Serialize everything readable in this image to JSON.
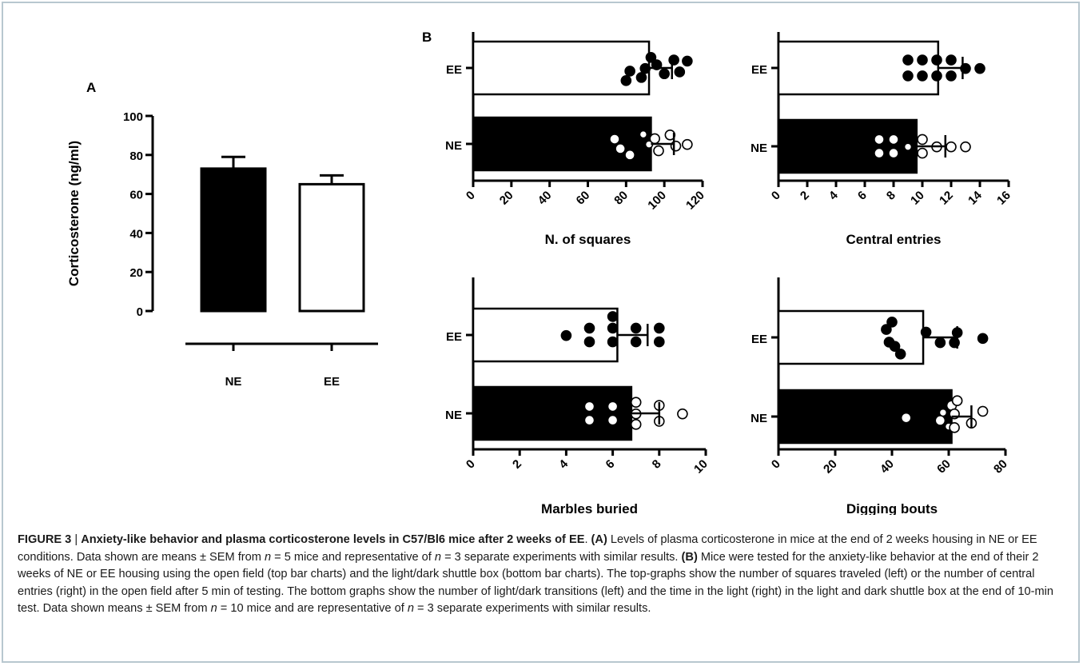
{
  "chart_data": [
    {
      "panel": "A",
      "type": "bar",
      "orientation": "vertical",
      "categories": [
        "NE",
        "EE"
      ],
      "values": [
        73,
        65
      ],
      "sem": [
        6,
        4.5
      ],
      "fills": [
        "#000000",
        "#ffffff"
      ],
      "ylabel": "Corticosterone (ng/ml)",
      "xlabel": "",
      "ylim": [
        0,
        100
      ],
      "yticks": [
        "0",
        "20",
        "40",
        "60",
        "80",
        "100"
      ]
    },
    {
      "panel": "B",
      "type": "bar",
      "orientation": "horizontal",
      "categories": [
        "EE",
        "NE"
      ],
      "values": [
        92,
        93
      ],
      "sem": [
        12,
        12
      ],
      "fills": [
        "#ffffff",
        "#000000"
      ],
      "xlabel": "N. of squares",
      "xlim": [
        0,
        120
      ],
      "xticks": [
        "0",
        "20",
        "40",
        "60",
        "80",
        "100",
        "120"
      ],
      "points": {
        "EE": [
          [
            80,
            0.48
          ],
          [
            82,
            0.12
          ],
          [
            88,
            0.36
          ],
          [
            90,
            0.02
          ],
          [
            93,
            -0.4
          ],
          [
            96,
            -0.12
          ],
          [
            100,
            0.22
          ],
          [
            105,
            -0.3
          ],
          [
            108,
            0.15
          ],
          [
            112,
            -0.26
          ]
        ],
        "NE": [
          [
            74,
            -0.18
          ],
          [
            77,
            0.18
          ],
          [
            82,
            0.42
          ],
          [
            89,
            -0.36
          ],
          [
            92,
            0.02
          ],
          [
            95,
            -0.2
          ],
          [
            97,
            0.26
          ],
          [
            103,
            -0.34
          ],
          [
            106,
            0.08
          ],
          [
            112,
            0.02
          ]
        ]
      }
    },
    {
      "panel": "B",
      "type": "bar",
      "orientation": "horizontal",
      "categories": [
        "EE",
        "NE"
      ],
      "values": [
        11.1,
        9.6
      ],
      "sem": [
        1.7,
        2.0
      ],
      "fills": [
        "#ffffff",
        "#000000"
      ],
      "xlabel": "Central entries",
      "xlim": [
        0,
        16
      ],
      "xticks": [
        "0",
        "2",
        "4",
        "6",
        "8",
        "10",
        "12",
        "14",
        "16"
      ],
      "points": {
        "EE": [
          [
            9,
            -0.3
          ],
          [
            9,
            0.3
          ],
          [
            10,
            -0.3
          ],
          [
            10,
            0.3
          ],
          [
            11,
            -0.3
          ],
          [
            11,
            0.3
          ],
          [
            12,
            -0.3
          ],
          [
            12,
            0.3
          ],
          [
            13,
            0.02
          ],
          [
            14,
            0.02
          ]
        ],
        "NE": [
          [
            7,
            -0.26
          ],
          [
            7,
            0.26
          ],
          [
            8,
            -0.26
          ],
          [
            8,
            0.26
          ],
          [
            9,
            0.02
          ],
          [
            10,
            -0.26
          ],
          [
            10,
            0.26
          ],
          [
            11,
            0.02
          ],
          [
            12,
            0.02
          ],
          [
            13,
            0.02
          ]
        ]
      }
    },
    {
      "panel": "B",
      "type": "bar",
      "orientation": "horizontal",
      "categories": [
        "EE",
        "NE"
      ],
      "values": [
        6.2,
        6.8
      ],
      "sem": [
        1.3,
        1.2
      ],
      "fills": [
        "#ffffff",
        "#000000"
      ],
      "xlabel": "Marbles buried",
      "xlim": [
        0,
        10
      ],
      "xticks": [
        "0",
        "2",
        "4",
        "6",
        "8",
        "10"
      ],
      "points": {
        "EE": [
          [
            4,
            0.02
          ],
          [
            5,
            -0.26
          ],
          [
            5,
            0.26
          ],
          [
            6,
            -0.26
          ],
          [
            6,
            0.26
          ],
          [
            6,
            -0.7
          ],
          [
            7,
            -0.26
          ],
          [
            7,
            0.26
          ],
          [
            8,
            -0.26
          ],
          [
            8,
            0.26
          ]
        ],
        "NE": [
          [
            5,
            -0.26
          ],
          [
            5,
            0.26
          ],
          [
            6,
            -0.26
          ],
          [
            6,
            0.26
          ],
          [
            7,
            -0.42
          ],
          [
            7,
            0.02
          ],
          [
            7,
            0.42
          ],
          [
            8,
            -0.3
          ],
          [
            8,
            0.3
          ],
          [
            9,
            0.02
          ]
        ]
      }
    },
    {
      "panel": "B",
      "type": "bar",
      "orientation": "horizontal",
      "categories": [
        "EE",
        "NE"
      ],
      "values": [
        51,
        61
      ],
      "sem": [
        12,
        7
      ],
      "fills": [
        "#ffffff",
        "#000000"
      ],
      "xlabel": "Digging bouts",
      "xlim": [
        0,
        80
      ],
      "xticks": [
        "0",
        "20",
        "40",
        "60",
        "80"
      ],
      "points": {
        "EE": [
          [
            38,
            -0.3
          ],
          [
            39,
            0.18
          ],
          [
            40,
            -0.58
          ],
          [
            41,
            0.34
          ],
          [
            43,
            0.63
          ],
          [
            52,
            -0.2
          ],
          [
            57,
            0.2
          ],
          [
            62,
            0.2
          ],
          [
            63,
            -0.18
          ],
          [
            72,
            0.04
          ]
        ],
        "NE": [
          [
            45,
            0.05
          ],
          [
            57,
            0.15
          ],
          [
            58,
            -0.15
          ],
          [
            60,
            0.38
          ],
          [
            61,
            -0.42
          ],
          [
            62,
            0.42
          ],
          [
            62,
            -0.1
          ],
          [
            63,
            -0.6
          ],
          [
            68,
            0.25
          ],
          [
            72,
            -0.2
          ]
        ]
      }
    }
  ],
  "panel_labels": {
    "a": "A",
    "b": "B"
  },
  "caption": {
    "figure_label": "FIGURE 3",
    "separator": " | ",
    "title": "Anxiety-like behavior and plasma corticosterone levels in C57/Bl6 mice after 2 weeks of EE",
    "a_ref": "(A)",
    "a_text": " Levels of plasma corticosterone in mice at the end of 2 weeks housing in NE or EE conditions. Data shown are means ± SEM from ",
    "a_n1": "n",
    "a_n1_val": " = 5 mice and representative of ",
    "a_n2": "n",
    "a_n2_val": " = 3 separate experiments with similar results. ",
    "b_ref": "(B)",
    "b_text": " Mice were tested for the anxiety-like behavior at the end of their 2 weeks of NE or EE housing using the open field (top bar charts) and the light/dark shuttle box (bottom bar charts). The top-graphs show the number of squares traveled (left) or the number of central entries (right) in the open field after 5 min of testing. The bottom graphs show the number of light/dark transitions (left) and the time in the light (right) in the light and dark shuttle box at the end of 10-min test. Data shown means ± SEM from ",
    "b_n1": "n",
    "b_n1_val": " = 10 mice and are representative of ",
    "b_n2": "n",
    "b_n2_val": " = 3 separate experiments with similar results."
  }
}
